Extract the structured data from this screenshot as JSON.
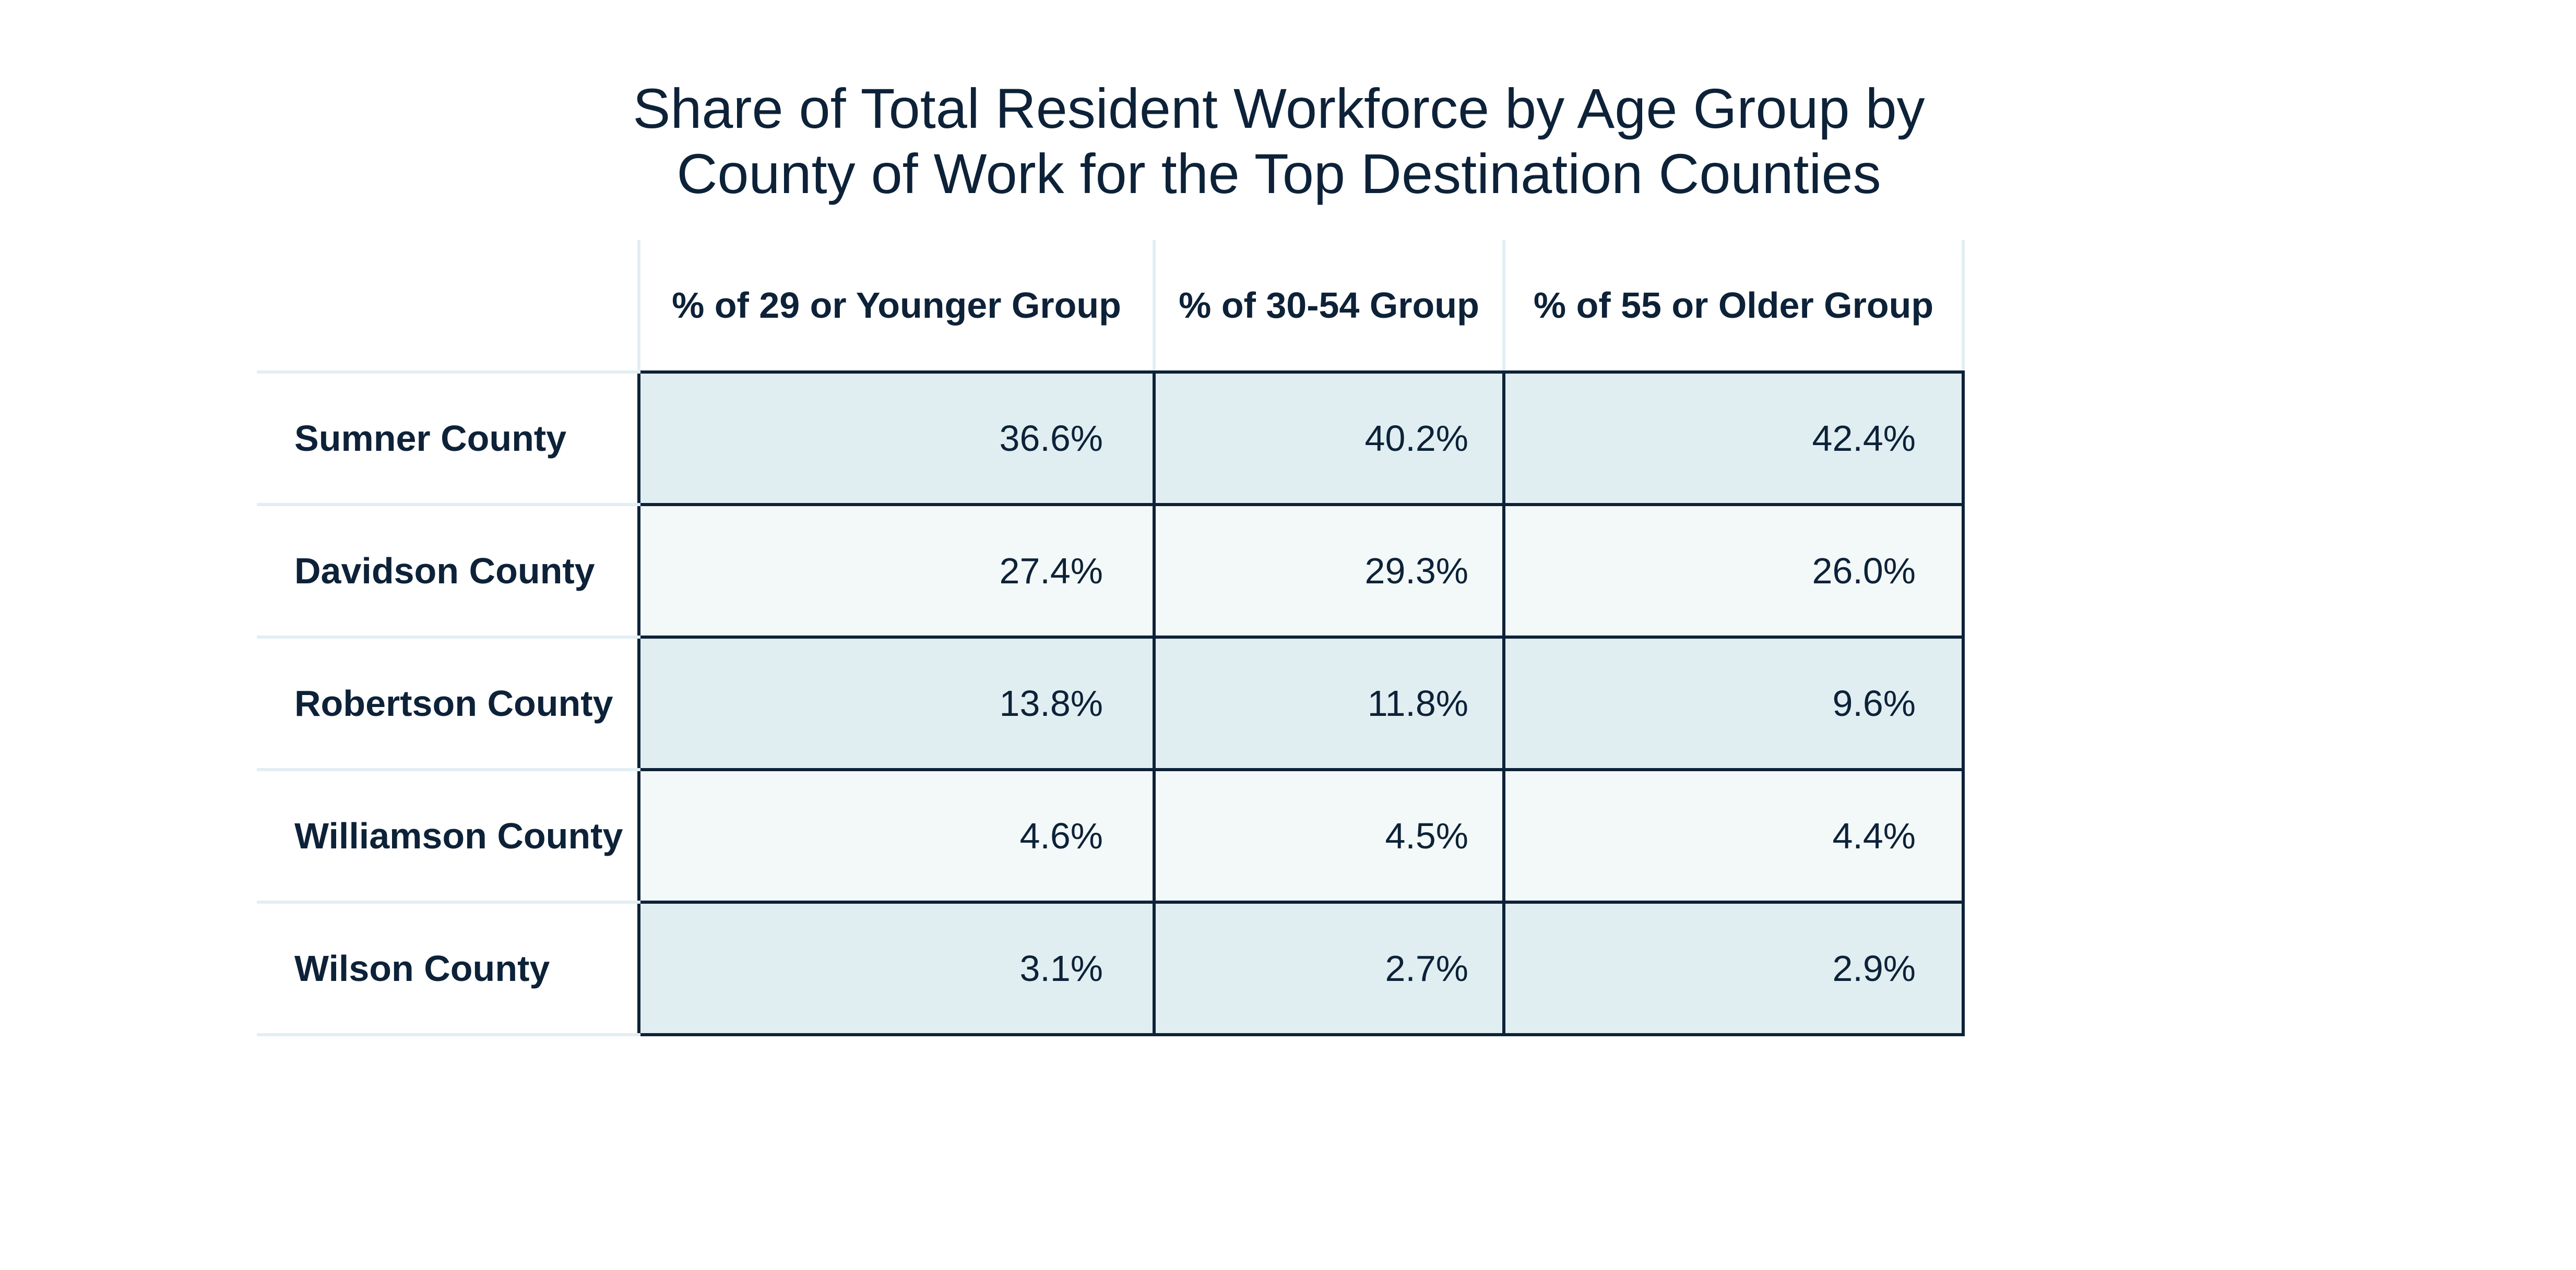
{
  "chart_data": {
    "type": "table",
    "title": "Share of Total Resident Workforce by Age Group by County of Work for the Top Destination Counties",
    "title_lines": [
      "Share of Total Resident Workforce by Age Group by",
      "County of Work for the Top Destination Counties"
    ],
    "columns": [
      "% of 29 or Younger Group",
      "% of 30-54 Group",
      "% of 55 or Older Group"
    ],
    "rows": [
      {
        "label": "Sumner County",
        "values": [
          "36.6%",
          "40.2%",
          "42.4%"
        ]
      },
      {
        "label": "Davidson County",
        "values": [
          "27.4%",
          "29.3%",
          "26.0%"
        ]
      },
      {
        "label": "Robertson County",
        "values": [
          "13.8%",
          "11.8%",
          "9.6%"
        ]
      },
      {
        "label": "Williamson County",
        "values": [
          "4.6%",
          "4.5%",
          "4.4%"
        ]
      },
      {
        "label": "Wilson County",
        "values": [
          "3.1%",
          "2.7%",
          "2.9%"
        ]
      }
    ]
  },
  "colors": {
    "text": "#0d2238",
    "band_odd": "#e0eef2",
    "band_even": "#f3f8f8",
    "light_rule": "#e2eef3"
  }
}
